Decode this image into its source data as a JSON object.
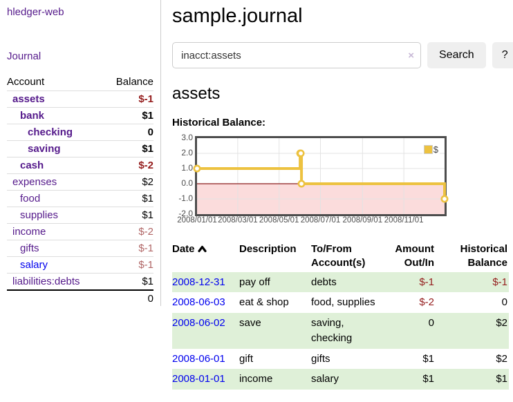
{
  "colors": {
    "purple": "#551a8b",
    "blue": "#0000ee",
    "negative": "#941c1c",
    "negative_soft": "#b06565",
    "row_green": "#dff0d8",
    "gold": "#edc240",
    "pink_region": "#fbdcdc",
    "zero_line": "#8b1a1a",
    "chart_border": "#4d4d4d"
  },
  "sidebar": {
    "app_title": "hledger-web",
    "journal_link": "Journal",
    "accounts_header": {
      "account": "Account",
      "balance": "Balance"
    },
    "accounts": [
      {
        "name": "assets",
        "balance": "$-1",
        "level": 1,
        "bold": true,
        "link_color": "purple",
        "balance_color": "negative"
      },
      {
        "name": "bank",
        "balance": "$1",
        "level": 2,
        "bold": true,
        "link_color": "purple",
        "balance_color": "normal"
      },
      {
        "name": "checking",
        "balance": "0",
        "level": 3,
        "bold": true,
        "link_color": "purple",
        "balance_color": "normal"
      },
      {
        "name": "saving",
        "balance": "$1",
        "level": 3,
        "bold": true,
        "link_color": "purple",
        "balance_color": "normal"
      },
      {
        "name": "cash",
        "balance": "$-2",
        "level": 2,
        "bold": true,
        "link_color": "purple",
        "balance_color": "negative"
      },
      {
        "name": "expenses",
        "balance": "$2",
        "level": 1,
        "bold": false,
        "link_color": "purple",
        "balance_color": "normal"
      },
      {
        "name": "food",
        "balance": "$1",
        "level": 2,
        "bold": false,
        "link_color": "purple",
        "balance_color": "normal"
      },
      {
        "name": "supplies",
        "balance": "$1",
        "level": 2,
        "bold": false,
        "link_color": "purple",
        "balance_color": "normal"
      },
      {
        "name": "income",
        "balance": "$-2",
        "level": 1,
        "bold": false,
        "link_color": "purple",
        "balance_color": "negative_soft"
      },
      {
        "name": "gifts",
        "balance": "$-1",
        "level": 2,
        "bold": false,
        "link_color": "purple",
        "balance_color": "negative_soft"
      },
      {
        "name": "salary",
        "balance": "$-1",
        "level": 2,
        "bold": false,
        "link_color": "blue",
        "balance_color": "negative_soft"
      },
      {
        "name": "liabilities:debts",
        "balance": "$1",
        "level": 1,
        "bold": false,
        "link_color": "purple",
        "balance_color": "normal"
      }
    ],
    "total": "0"
  },
  "main": {
    "title": "sample.journal",
    "search": {
      "value": "inacct:assets",
      "clear_icon": "×",
      "button": "Search",
      "help_button": "?"
    },
    "account_heading": "assets",
    "chart_label": "Historical Balance:"
  },
  "chart_data": {
    "type": "line",
    "step": true,
    "title": "Historical Balance:",
    "series": [
      {
        "name": "$",
        "color": "#edc240",
        "points": [
          [
            "2008-01-01",
            1
          ],
          [
            "2008-06-01",
            2
          ],
          [
            "2008-06-02",
            2
          ],
          [
            "2008-06-03",
            0
          ],
          [
            "2008-12-31",
            -1
          ]
        ]
      }
    ],
    "x_range": [
      "2008-01-01",
      "2008-12-31"
    ],
    "ylim": [
      -2,
      3
    ],
    "y_ticks": [
      3.0,
      2.0,
      1.0,
      0.0,
      -1.0,
      -2.0
    ],
    "x_ticks": [
      "2008/01/01",
      "2008/03/01",
      "2008/05/01",
      "2008/07/01",
      "2008/09/01",
      "2008/11/01"
    ],
    "legend": {
      "label": "$",
      "position": "top-right"
    },
    "grid": true,
    "negative_region_color": "#fbdcdc",
    "zero_line_color": "#8b1a1a"
  },
  "transactions": {
    "columns": {
      "date": "Date",
      "description": "Description",
      "accounts": "To/From Account(s)",
      "amount": "Amount Out/In",
      "balance": "Historical Balance"
    },
    "sort": {
      "column": "Date",
      "direction": "asc"
    },
    "rows": [
      {
        "date": "2008-12-31",
        "description": "pay off",
        "accounts": "debts",
        "amount": "$-1",
        "amount_color": "negative",
        "balance": "$-1",
        "balance_color": "negative"
      },
      {
        "date": "2008-06-03",
        "description": "eat & shop",
        "accounts": "food, supplies",
        "amount": "$-2",
        "amount_color": "negative",
        "balance": "0",
        "balance_color": "normal"
      },
      {
        "date": "2008-06-02",
        "description": "save",
        "accounts": "saving, checking",
        "amount": "0",
        "amount_color": "normal",
        "balance": "$2",
        "balance_color": "normal"
      },
      {
        "date": "2008-06-01",
        "description": "gift",
        "accounts": "gifts",
        "amount": "$1",
        "amount_color": "normal",
        "balance": "$2",
        "balance_color": "normal"
      },
      {
        "date": "2008-01-01",
        "description": "income",
        "accounts": "salary",
        "amount": "$1",
        "amount_color": "normal",
        "balance": "$1",
        "balance_color": "normal"
      }
    ]
  }
}
